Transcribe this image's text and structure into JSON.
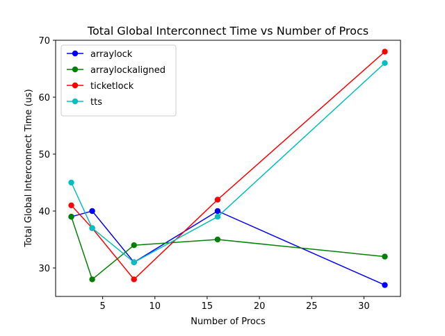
{
  "chart_data": {
    "type": "line",
    "title": "Total Global Interconnect Time vs Number of Procs",
    "xlabel": "Number of Procs",
    "ylabel": "Total Global Interconnect Time (us)",
    "xlim": [
      0.5,
      33.5
    ],
    "ylim": [
      25,
      70
    ],
    "xticks": [
      5,
      10,
      15,
      20,
      25,
      30
    ],
    "yticks": [
      30,
      40,
      50,
      60,
      70
    ],
    "grid": false,
    "legend_position": "top-left",
    "series": [
      {
        "name": "arraylock",
        "color": "#0000ff",
        "x": [
          2,
          4,
          8,
          16,
          32
        ],
        "y": [
          39,
          40,
          31,
          40,
          27
        ]
      },
      {
        "name": "arraylockaligned",
        "color": "#008000",
        "x": [
          2,
          4,
          8,
          16,
          32
        ],
        "y": [
          39,
          28,
          34,
          35,
          32
        ]
      },
      {
        "name": "ticketlock",
        "color": "#ff0000",
        "x": [
          2,
          4,
          8,
          16,
          32
        ],
        "y": [
          41,
          37,
          28,
          42,
          68
        ]
      },
      {
        "name": "tts",
        "color": "#00bfbf",
        "x": [
          2,
          4,
          8,
          16,
          32
        ],
        "y": [
          45,
          37,
          31,
          39,
          66
        ]
      }
    ]
  }
}
